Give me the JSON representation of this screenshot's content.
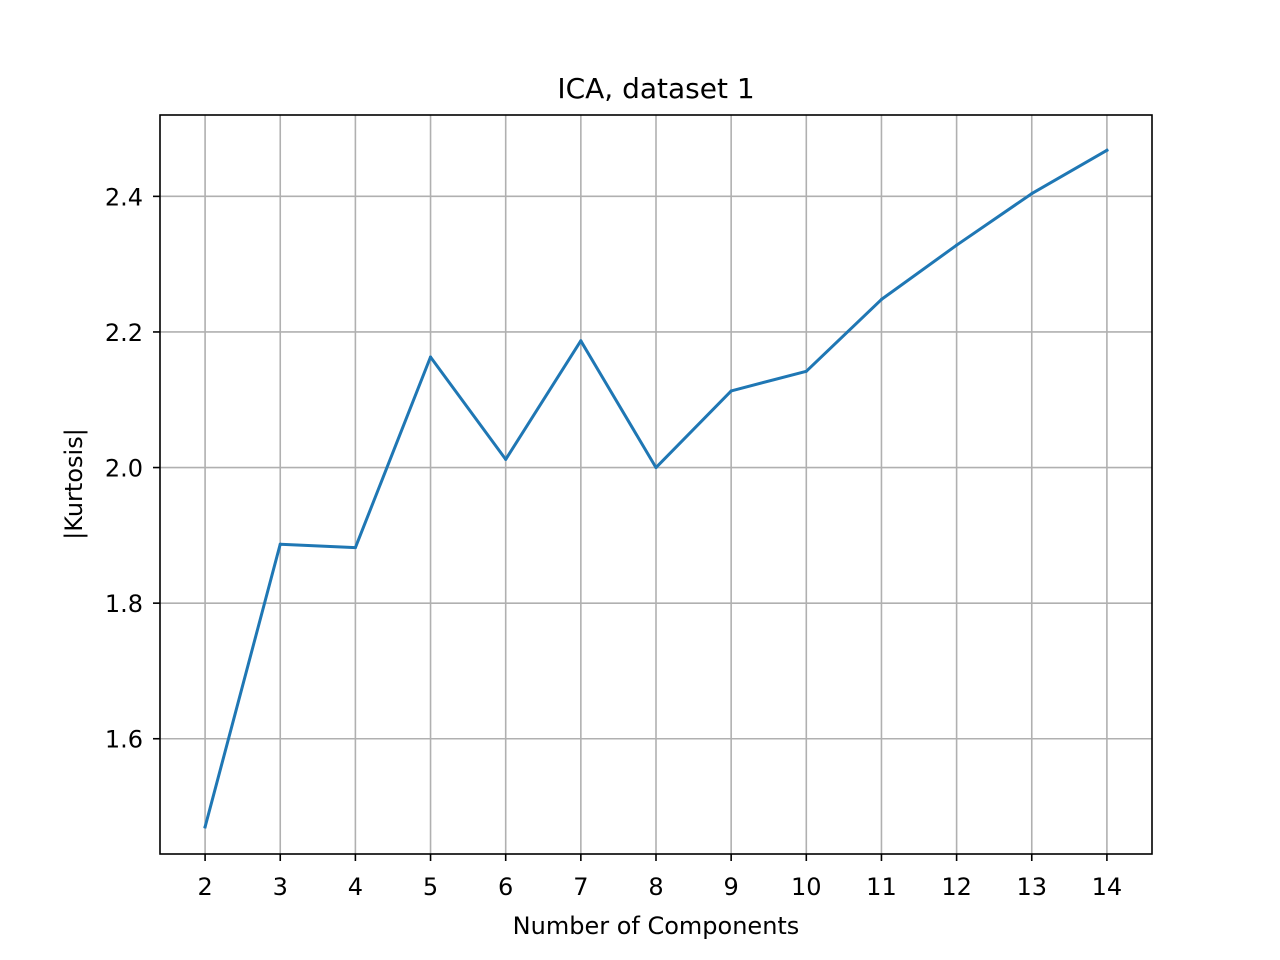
{
  "chart_data": {
    "type": "line",
    "title": "ICA, dataset 1",
    "xlabel": "Number of Components",
    "ylabel": "|Kurtosis|",
    "x": [
      2,
      3,
      4,
      5,
      6,
      7,
      8,
      9,
      10,
      11,
      12,
      13,
      14
    ],
    "series": [
      {
        "values": [
          1.47,
          1.887,
          1.882,
          2.163,
          2.012,
          2.187,
          2.0,
          2.113,
          2.142,
          2.248,
          2.328,
          2.404,
          2.468
        ]
      }
    ],
    "xticks": [
      "2",
      "3",
      "4",
      "5",
      "6",
      "7",
      "8",
      "9",
      "10",
      "11",
      "12",
      "13",
      "14"
    ],
    "yticks": [
      "1.6",
      "1.8",
      "2.0",
      "2.2",
      "2.4"
    ],
    "xlim": [
      1.4,
      14.6
    ],
    "ylim": [
      1.43,
      2.52
    ],
    "grid": true,
    "line_color": "#1f77b4",
    "grid_color": "#b0b0b0"
  }
}
